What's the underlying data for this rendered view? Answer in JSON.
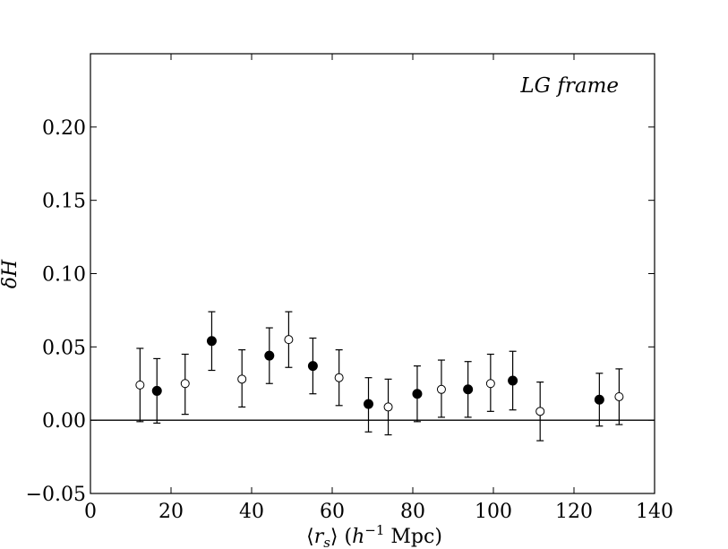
{
  "chart_data": {
    "type": "scatter",
    "title": "",
    "annotation": "LG frame",
    "xlabel": "⟨r_s⟩ (h^-1 Mpc)",
    "ylabel": "δH",
    "xlim": [
      0,
      140
    ],
    "ylim": [
      -0.05,
      0.25
    ],
    "xticks": [
      {
        "value": 0,
        "label": "0"
      },
      {
        "value": 20,
        "label": "20"
      },
      {
        "value": 40,
        "label": "40"
      },
      {
        "value": 60,
        "label": "60"
      },
      {
        "value": 80,
        "label": "80"
      },
      {
        "value": 100,
        "label": "100"
      },
      {
        "value": 120,
        "label": "120"
      },
      {
        "value": 140,
        "label": "140"
      }
    ],
    "yticks": [
      {
        "value": -0.05,
        "label": "−0.05"
      },
      {
        "value": 0.0,
        "label": "0.00"
      },
      {
        "value": 0.05,
        "label": "0.05"
      },
      {
        "value": 0.1,
        "label": "0.10"
      },
      {
        "value": 0.15,
        "label": "0.15"
      },
      {
        "value": 0.2,
        "label": "0.20"
      }
    ],
    "reference_line_y": 0,
    "grid": false,
    "series": [
      {
        "marker": "open-circle",
        "points": [
          {
            "x": 12.3,
            "y": 0.024,
            "lo": -0.001,
            "hi": 0.049
          },
          {
            "x": 23.5,
            "y": 0.025,
            "lo": 0.004,
            "hi": 0.045
          },
          {
            "x": 37.6,
            "y": 0.028,
            "lo": 0.009,
            "hi": 0.048
          },
          {
            "x": 49.2,
            "y": 0.055,
            "lo": 0.036,
            "hi": 0.074
          },
          {
            "x": 61.7,
            "y": 0.029,
            "lo": 0.01,
            "hi": 0.048
          },
          {
            "x": 73.9,
            "y": 0.009,
            "lo": -0.01,
            "hi": 0.028
          },
          {
            "x": 87.1,
            "y": 0.021,
            "lo": 0.002,
            "hi": 0.041
          },
          {
            "x": 99.3,
            "y": 0.025,
            "lo": 0.006,
            "hi": 0.045
          },
          {
            "x": 111.6,
            "y": 0.006,
            "lo": -0.014,
            "hi": 0.026
          },
          {
            "x": 131.2,
            "y": 0.016,
            "lo": -0.003,
            "hi": 0.035
          }
        ]
      },
      {
        "marker": "filled-circle",
        "points": [
          {
            "x": 16.5,
            "y": 0.02,
            "lo": -0.002,
            "hi": 0.042
          },
          {
            "x": 30.1,
            "y": 0.054,
            "lo": 0.034,
            "hi": 0.074
          },
          {
            "x": 44.4,
            "y": 0.044,
            "lo": 0.025,
            "hi": 0.063
          },
          {
            "x": 55.2,
            "y": 0.037,
            "lo": 0.018,
            "hi": 0.056
          },
          {
            "x": 69.0,
            "y": 0.011,
            "lo": -0.008,
            "hi": 0.029
          },
          {
            "x": 81.1,
            "y": 0.018,
            "lo": -0.001,
            "hi": 0.037
          },
          {
            "x": 93.7,
            "y": 0.021,
            "lo": 0.002,
            "hi": 0.04
          },
          {
            "x": 104.8,
            "y": 0.027,
            "lo": 0.007,
            "hi": 0.047
          },
          {
            "x": 126.3,
            "y": 0.014,
            "lo": -0.004,
            "hi": 0.032
          }
        ]
      }
    ]
  }
}
